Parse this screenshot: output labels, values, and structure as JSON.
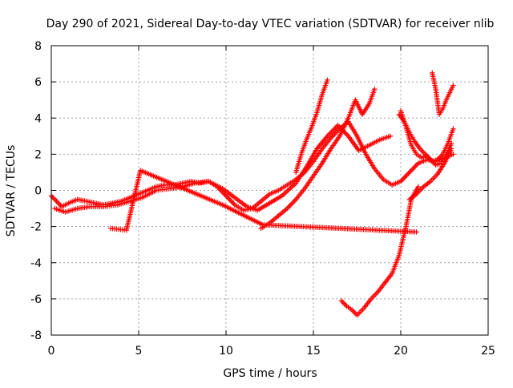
{
  "chart_data": {
    "type": "scatter",
    "title": "Day 290 of 2021, Sidereal Day-to-day VTEC variation (SDTVAR) for receiver nlib",
    "xlabel": "GPS time / hours",
    "ylabel": "SDTVAR / TECUs",
    "xlim": [
      0,
      25
    ],
    "ylim": [
      -8,
      8
    ],
    "x_ticks": [
      0,
      5,
      10,
      15,
      20,
      25
    ],
    "y_ticks": [
      -8,
      -6,
      -4,
      -2,
      0,
      2,
      4,
      6,
      8
    ],
    "grid": true,
    "marker": "plus",
    "color": "#ff0000",
    "series": [
      {
        "x": [
          0.0,
          0.3,
          0.6,
          1.0,
          1.5,
          2.0,
          2.5,
          3.0,
          3.5,
          4.0,
          4.5,
          5.0,
          5.5,
          6.0,
          6.5,
          7.0,
          7.5,
          8.0,
          8.5,
          9.0,
          9.5,
          10.0,
          10.5,
          11.0,
          11.5,
          12.0,
          12.5,
          13.0,
          13.5,
          14.0,
          14.5,
          15.0,
          15.5,
          16.0,
          16.5,
          17.0,
          17.5,
          18.0,
          18.5,
          19.0,
          19.5,
          20.0,
          20.5,
          21.0,
          21.5,
          22.0,
          22.5,
          23.0
        ],
        "y": [
          -0.3,
          -0.6,
          -0.9,
          -0.7,
          -0.5,
          -0.6,
          -0.7,
          -0.8,
          -0.7,
          -0.6,
          -0.4,
          -0.2,
          0.0,
          0.2,
          0.3,
          0.3,
          0.4,
          0.5,
          0.4,
          0.5,
          0.2,
          -0.3,
          -0.8,
          -1.1,
          -1.0,
          -0.6,
          -0.2,
          0.0,
          0.3,
          0.6,
          1.0,
          1.6,
          2.3,
          2.9,
          3.4,
          3.8,
          3.0,
          2.0,
          1.2,
          0.6,
          0.3,
          0.5,
          1.0,
          1.5,
          1.7,
          1.6,
          1.8,
          2.0
        ]
      },
      {
        "x": [
          0.2,
          0.8,
          1.5,
          2.2,
          3.0,
          3.8,
          4.5,
          5.2,
          6.0,
          6.8,
          7.5,
          8.2,
          9.0,
          9.8,
          10.5,
          11.2,
          11.8,
          12.5,
          13.2,
          14.0,
          14.6,
          15.2,
          15.8,
          16.4,
          17.0,
          17.6,
          18.2,
          18.8,
          19.4
        ],
        "y": [
          -1.0,
          -1.2,
          -1.0,
          -0.9,
          -0.9,
          -0.8,
          -0.6,
          -0.4,
          0.0,
          0.1,
          0.2,
          0.4,
          0.5,
          0.1,
          -0.4,
          -0.9,
          -1.1,
          -0.7,
          -0.3,
          0.4,
          1.3,
          2.3,
          3.0,
          3.6,
          3.0,
          2.2,
          2.5,
          2.8,
          3.0
        ]
      },
      {
        "x": [
          12.0,
          12.5,
          13.0,
          13.5,
          14.0,
          14.5,
          15.0,
          15.5,
          16.0,
          16.5,
          17.0,
          17.4,
          17.8,
          18.2,
          18.5
        ],
        "y": [
          -2.1,
          -1.8,
          -1.4,
          -1.0,
          -0.5,
          0.1,
          0.8,
          1.5,
          2.3,
          3.0,
          4.0,
          5.0,
          4.2,
          4.8,
          5.6
        ]
      },
      {
        "x": [
          14.0,
          14.3,
          14.6,
          14.9,
          15.2,
          15.5,
          15.8
        ],
        "y": [
          1.0,
          2.0,
          2.8,
          3.5,
          4.3,
          5.3,
          6.1
        ]
      },
      {
        "x": [
          16.6,
          16.9,
          17.2,
          17.5,
          17.9,
          18.3,
          18.7,
          19.1,
          19.5,
          19.9,
          20.3,
          20.6,
          21.0
        ],
        "y": [
          -6.1,
          -6.4,
          -6.6,
          -6.9,
          -6.5,
          -6.0,
          -5.6,
          -5.1,
          -4.6,
          -3.6,
          -2.0,
          -0.5,
          0.2
        ]
      },
      {
        "x": [
          20.0,
          20.3,
          20.6,
          20.9,
          21.2,
          21.5,
          21.8,
          22.1,
          22.4,
          22.7,
          23.0
        ],
        "y": [
          4.4,
          3.5,
          2.5,
          2.0,
          1.8,
          1.9,
          1.6,
          1.7,
          2.0,
          2.6,
          3.4
        ]
      },
      {
        "x": [
          21.8,
          22.0,
          22.2,
          22.4,
          22.6,
          22.8,
          23.0
        ],
        "y": [
          6.5,
          5.6,
          4.2,
          4.5,
          5.0,
          5.4,
          5.8
        ]
      },
      {
        "x": [
          19.9,
          20.2,
          20.5,
          20.8,
          21.1,
          21.4,
          21.7,
          22.0,
          22.3,
          22.6,
          22.9
        ],
        "y": [
          4.2,
          3.8,
          3.2,
          2.7,
          2.3,
          2.0,
          1.7,
          1.4,
          1.5,
          2.0,
          2.6
        ]
      },
      {
        "x": [
          20.5,
          20.9,
          21.3,
          21.7,
          22.1,
          22.5,
          22.9
        ],
        "y": [
          -0.5,
          -0.2,
          0.2,
          0.5,
          0.9,
          1.5,
          2.3
        ]
      },
      {
        "x": [
          3.4,
          4.3,
          5.1,
          9.8,
          12.1,
          20.9
        ],
        "y": [
          -2.1,
          -2.2,
          1.1,
          -0.8,
          -1.9,
          -2.3
        ]
      }
    ]
  }
}
